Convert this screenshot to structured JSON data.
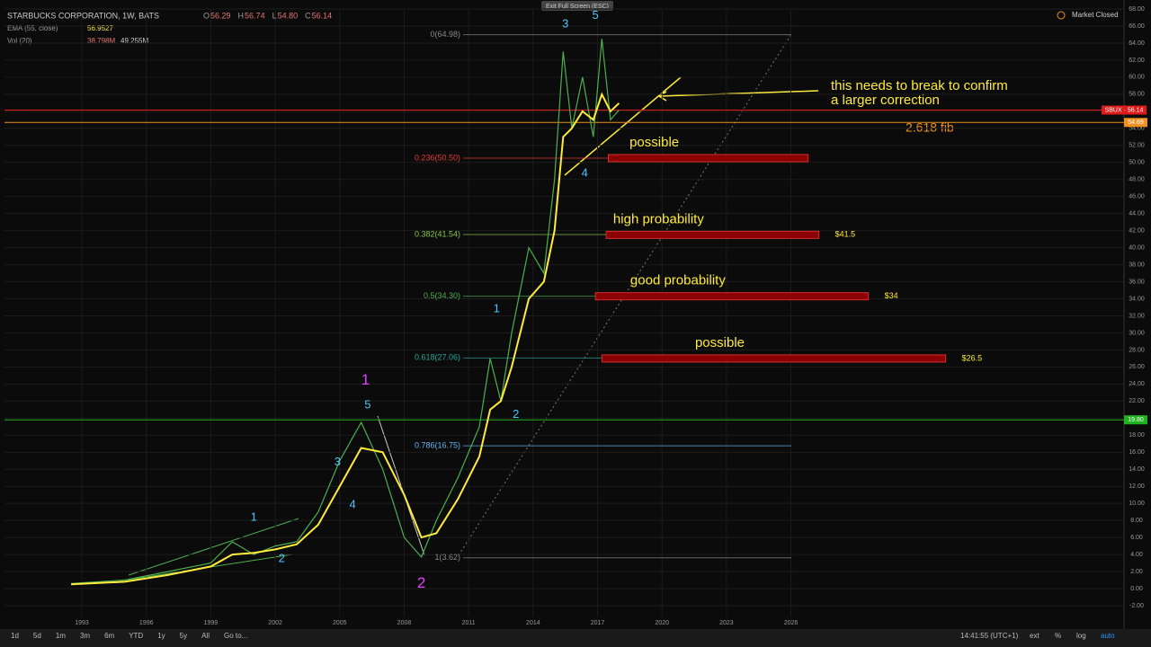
{
  "header": {
    "symbol": "STARBUCKS CORPORATION, 1W, BATS",
    "ohlc": [
      {
        "key": "O",
        "value": "56.29"
      },
      {
        "key": "H",
        "value": "56.74"
      },
      {
        "key": "L",
        "value": "54.80"
      },
      {
        "key": "C",
        "value": "56.14"
      }
    ],
    "ema": {
      "name": "EMA (55, close)",
      "value": "56.9527"
    },
    "vol": {
      "name": "Vol (20)",
      "values": [
        "38.798M",
        "49.255M"
      ]
    },
    "exit": "Exit Full Screen (ESC)",
    "market": "Market Closed"
  },
  "chart_data": {
    "type": "line",
    "x": [
      1992.5,
      1995,
      1997,
      1999,
      2000,
      2001,
      2002,
      2003,
      2004,
      2005,
      2006,
      2007,
      2008,
      2008.8,
      2009.5,
      2010.5,
      2011.5,
      2012,
      2012.5,
      2013,
      2013.8,
      2014.5,
      2015,
      2015.4,
      2015.8,
      2016.3,
      2016.8,
      2017.2,
      2017.6,
      2018
    ],
    "series": [
      {
        "name": "SBUX",
        "color": "#4caf50",
        "values": [
          0.6,
          1,
          2,
          3,
          5.5,
          4,
          5,
          5.5,
          9,
          15,
          19.5,
          14,
          6,
          3.7,
          8,
          13,
          19,
          27,
          22,
          30,
          40,
          37,
          48,
          63,
          54,
          60,
          53,
          64.5,
          55,
          56.14
        ]
      },
      {
        "name": "EMA",
        "color": "#ffeb3b",
        "values": [
          0.5,
          0.8,
          1.6,
          2.6,
          4,
          4.2,
          4.6,
          5.2,
          7.5,
          12,
          16.5,
          16,
          11,
          6,
          6.5,
          10.5,
          15.5,
          21,
          22,
          26,
          34,
          36,
          42,
          53,
          54,
          56,
          55,
          58,
          56,
          56.95
        ]
      }
    ],
    "xlim": [
      1989.4,
      2041.5
    ],
    "ylim": [
      -2,
      68
    ],
    "xticks": [
      1993,
      1996,
      1999,
      2002,
      2005,
      2008,
      2011,
      2014,
      2017,
      2020,
      2023,
      2026
    ],
    "yticks": [
      {
        "value": 68,
        "label": "68.00"
      },
      {
        "value": 66,
        "label": "66.00"
      },
      {
        "value": 64,
        "label": "64.00"
      },
      {
        "value": 62,
        "label": "62.00"
      },
      {
        "value": 60,
        "label": "60.00"
      },
      {
        "value": 58,
        "label": "58.00"
      },
      {
        "value": 56,
        "label": "56.00"
      },
      {
        "value": 54,
        "label": "54.00"
      },
      {
        "value": 52,
        "label": "52.00"
      },
      {
        "value": 50,
        "label": "50.00"
      },
      {
        "value": 48,
        "label": "48.00"
      },
      {
        "value": 46,
        "label": "46.00"
      },
      {
        "value": 44,
        "label": "44.00"
      },
      {
        "value": 42,
        "label": "42.00"
      },
      {
        "value": 40,
        "label": "40.00"
      },
      {
        "value": 38,
        "label": "38.00"
      },
      {
        "value": 36,
        "label": "36.00"
      },
      {
        "value": 34,
        "label": "34.00"
      },
      {
        "value": 32,
        "label": "32.00"
      },
      {
        "value": 30,
        "label": "30.00"
      },
      {
        "value": 28,
        "label": "28.00"
      },
      {
        "value": 26,
        "label": "26.00"
      },
      {
        "value": 24,
        "label": "24.00"
      },
      {
        "value": 22,
        "label": "22.00"
      },
      {
        "value": 20,
        "label": "20.00"
      },
      {
        "value": 18,
        "label": "18.00"
      },
      {
        "value": 16,
        "label": "16.00"
      },
      {
        "value": 14,
        "label": "14.00"
      },
      {
        "value": 12,
        "label": "12.00"
      },
      {
        "value": 10,
        "label": "10.00"
      },
      {
        "value": 8,
        "label": "8.00"
      },
      {
        "value": 6,
        "label": "6.00"
      },
      {
        "value": 4,
        "label": "4.00"
      },
      {
        "value": 2,
        "label": "2.00"
      },
      {
        "value": 0,
        "label": "0.00"
      },
      {
        "value": -2,
        "label": "-2.00"
      }
    ],
    "price_tags": [
      {
        "value": 56.14,
        "label": "SBUX · 56.14",
        "color": "#e01a1a"
      },
      {
        "value": 54.69,
        "label": "54.69",
        "color": "#f0901e"
      },
      {
        "value": 19.8,
        "label": "19.80",
        "color": "#20b020"
      }
    ],
    "fib_levels": [
      {
        "value": 64.98,
        "label": "0(64.98)",
        "color": "#888888"
      },
      {
        "value": 50.5,
        "label": "0.236(50.50)",
        "color": "#e53935"
      },
      {
        "value": 41.54,
        "label": "0.382(41.54)",
        "color": "#8bc34a"
      },
      {
        "value": 34.3,
        "label": "0.5(34.30)",
        "color": "#4caf50"
      },
      {
        "value": 27.06,
        "label": "0.618(27.06)",
        "color": "#26a69a"
      },
      {
        "value": 16.75,
        "label": "0.786(16.75)",
        "color": "#64b5f6"
      },
      {
        "value": 3.62,
        "label": "1(3.62)",
        "color": "#888888"
      }
    ],
    "zones": [
      {
        "value": 50.5,
        "from": 2017.5,
        "to": 2026.8,
        "text": "possible"
      },
      {
        "value": 41.5,
        "from": 2017.4,
        "to": 2027.3,
        "text": "high probability",
        "label": "$41.5"
      },
      {
        "value": 34.3,
        "from": 2016.9,
        "to": 2029.6,
        "text": "good probability",
        "label": "$34"
      },
      {
        "value": 27,
        "from": 2017.2,
        "to": 2033.2,
        "text": "possible",
        "label": "$26.5"
      }
    ],
    "waves": [
      {
        "label": "1",
        "x": 2001,
        "y": 8.3,
        "color": "#4fc3f7"
      },
      {
        "label": "2",
        "x": 2002.3,
        "y": 3.5,
        "color": "#4fc3f7"
      },
      {
        "label": "3",
        "x": 2004.9,
        "y": 14.8,
        "color": "#4fc3f7"
      },
      {
        "label": "4",
        "x": 2005.6,
        "y": 9.8,
        "color": "#4fc3f7"
      },
      {
        "label": "5",
        "x": 2006.3,
        "y": 21.5,
        "color": "#4fc3f7"
      },
      {
        "label": "1",
        "x": 2006.2,
        "y": 24.4,
        "color": "#e040fb"
      },
      {
        "label": "2",
        "x": 2008.8,
        "y": 0.6,
        "color": "#e040fb"
      },
      {
        "label": "1",
        "x": 2012.3,
        "y": 32.8,
        "color": "#4fc3f7"
      },
      {
        "label": "2",
        "x": 2013.2,
        "y": 20.4,
        "color": "#4fc3f7"
      },
      {
        "label": "3",
        "x": 2015.5,
        "y": 66.2,
        "color": "#4fc3f7"
      },
      {
        "label": "4",
        "x": 2016.4,
        "y": 48.7,
        "color": "#4fc3f7"
      },
      {
        "label": "5",
        "x": 2016.9,
        "y": 67.2,
        "color": "#4fc3f7"
      }
    ],
    "fib_note": "2.618 fib",
    "annotation": [
      "this needs to break to confirm",
      "a larger correction"
    ]
  },
  "bottom": {
    "ranges": [
      "1d",
      "5d",
      "1m",
      "3m",
      "6m",
      "YTD",
      "1y",
      "5y",
      "All",
      "Go to..."
    ],
    "time": "14:41:55 (UTC+1)",
    "options": [
      "ext",
      "%",
      "log",
      "auto"
    ]
  }
}
